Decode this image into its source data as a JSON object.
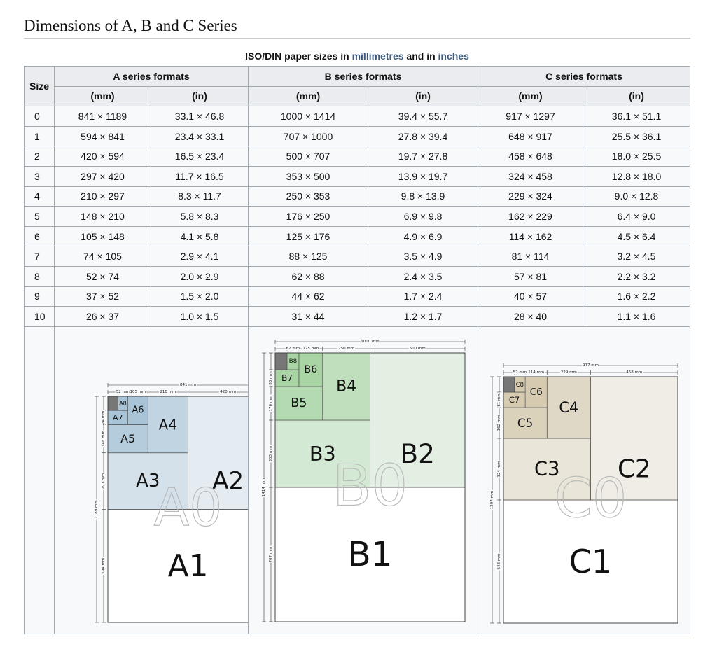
{
  "heading": "Dimensions of A, B and C Series",
  "caption": {
    "prefix": "ISO/DIN paper sizes in ",
    "millimetres": "millimetres",
    "middle": " and in ",
    "inches": "inches"
  },
  "table": {
    "size_header": "Size",
    "series_headers": [
      "A series formats",
      "B series formats",
      "C series formats"
    ],
    "unit_headers": [
      "(mm)",
      "(in)",
      "(mm)",
      "(in)",
      "(mm)",
      "(in)"
    ],
    "rows": [
      [
        "0",
        "841 × 1189",
        "33.1 × 46.8",
        "1000 × 1414",
        "39.4 × 55.7",
        "917 × 1297",
        "36.1 × 51.1"
      ],
      [
        "1",
        "594 × 841",
        "23.4 × 33.1",
        "707 × 1000",
        "27.8 × 39.4",
        "648 × 917",
        "25.5 × 36.1"
      ],
      [
        "2",
        "420 × 594",
        "16.5 × 23.4",
        "500 × 707",
        "19.7 × 27.8",
        "458 × 648",
        "18.0 × 25.5"
      ],
      [
        "3",
        "297 × 420",
        "11.7 × 16.5",
        "353 × 500",
        "13.9 × 19.7",
        "324 × 458",
        "12.8 × 18.0"
      ],
      [
        "4",
        "210 × 297",
        "8.3 × 11.7",
        "250 × 353",
        "9.8 × 13.9",
        "229 × 324",
        "9.0 × 12.8"
      ],
      [
        "5",
        "148 × 210",
        "5.8 × 8.3",
        "176 × 250",
        "6.9 × 9.8",
        "162 × 229",
        "6.4 × 9.0"
      ],
      [
        "6",
        "105 × 148",
        "4.1 × 5.8",
        "125 × 176",
        "4.9 × 6.9",
        "114 × 162",
        "4.5 × 6.4"
      ],
      [
        "7",
        "74 × 105",
        "2.9 × 4.1",
        "88 × 125",
        "3.5 × 4.9",
        "81 × 114",
        "3.2 × 4.5"
      ],
      [
        "8",
        "52 × 74",
        "2.0 × 2.9",
        "62 × 88",
        "2.4 × 3.5",
        "57 × 81",
        "2.2 × 3.2"
      ],
      [
        "9",
        "37 × 52",
        "1.5 × 2.0",
        "44 × 62",
        "1.7 × 2.4",
        "40 × 57",
        "1.6 × 2.2"
      ],
      [
        "10",
        "26 × 37",
        "1.0 × 1.5",
        "31 × 44",
        "1.2 × 1.7",
        "28 × 40",
        "1.1 × 1.6"
      ]
    ]
  },
  "diagrams": [
    {
      "series": "A",
      "color": "#a9c4d6",
      "labels": {
        "s0": "A0",
        "s1": "A1",
        "s2": "A2",
        "s3": "A3",
        "s4": "A4",
        "s5": "A5",
        "s6": "A6",
        "s7": "A7",
        "s8": "A8"
      },
      "dims": {
        "total_w": "841 mm",
        "total_h": "1189 mm",
        "w8": "52 mm",
        "w6": "105 mm",
        "w4": "210 mm",
        "w2": "420 mm",
        "h8": "74 mm",
        "h6": "148 mm",
        "h4": "297 mm",
        "h2": "594 mm"
      }
    },
    {
      "series": "B",
      "color": "#a8d5a3",
      "labels": {
        "s0": "B0",
        "s1": "B1",
        "s2": "B2",
        "s3": "B3",
        "s4": "B4",
        "s5": "B5",
        "s6": "B6",
        "s7": "B7",
        "s8": "B8"
      },
      "dims": {
        "total_w": "1000 mm",
        "total_h": "1414 mm",
        "w8": "62 mm",
        "w6": "125 mm",
        "w4": "250 mm",
        "w2": "500 mm",
        "h8": "88 mm",
        "h6": "176 mm",
        "h4": "353 mm",
        "h2": "707 mm"
      }
    },
    {
      "series": "C",
      "color": "#d6cbb0",
      "labels": {
        "s0": "C0",
        "s1": "C1",
        "s2": "C2",
        "s3": "C3",
        "s4": "C4",
        "s5": "C5",
        "s6": "C6",
        "s7": "C7",
        "s8": "C8"
      },
      "dims": {
        "total_w": "917 mm",
        "total_h": "1297 mm",
        "w8": "57 mm",
        "w6": "114 mm",
        "w4": "229 mm",
        "w2": "458 mm",
        "h8": "81 mm",
        "h6": "162 mm",
        "h4": "324 mm",
        "h2": "648 mm"
      }
    }
  ]
}
